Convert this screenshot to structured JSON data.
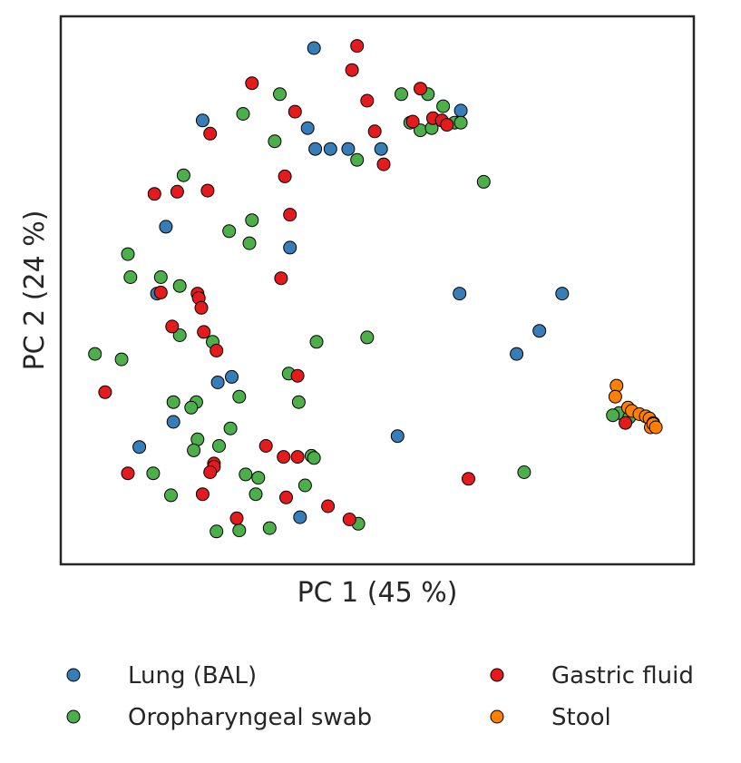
{
  "chart_data": {
    "type": "scatter",
    "title": "",
    "xlabel": "PC 1 (45 %)",
    "ylabel": "PC 2 (24 %)",
    "xlim": [
      0,
      100
    ],
    "ylim": [
      0,
      100
    ],
    "ticks": "none",
    "grid": false,
    "legend_position": "bottom",
    "series": [
      {
        "name": "Lung (BAL)",
        "color": "#377eb8",
        "points": [
          [
            40.0,
            94.2
          ],
          [
            22.4,
            81.0
          ],
          [
            39.0,
            79.6
          ],
          [
            40.2,
            75.8
          ],
          [
            42.6,
            75.8
          ],
          [
            45.4,
            75.8
          ],
          [
            50.6,
            75.8
          ],
          [
            63.2,
            82.8
          ],
          [
            16.6,
            61.6
          ],
          [
            36.2,
            57.8
          ],
          [
            15.2,
            49.4
          ],
          [
            63.0,
            49.4
          ],
          [
            79.2,
            49.4
          ],
          [
            75.6,
            42.6
          ],
          [
            72.0,
            38.4
          ],
          [
            27.0,
            34.2
          ],
          [
            24.8,
            33.2
          ],
          [
            17.8,
            26.0
          ],
          [
            12.4,
            21.4
          ],
          [
            53.2,
            23.4
          ],
          [
            37.8,
            8.6
          ]
        ]
      },
      {
        "name": "Oropharyngeal swab",
        "color": "#4daf4a",
        "points": [
          [
            34.6,
            85.8
          ],
          [
            28.8,
            82.2
          ],
          [
            53.8,
            85.8
          ],
          [
            55.2,
            80.6
          ],
          [
            56.8,
            79.2
          ],
          [
            58.0,
            85.8
          ],
          [
            58.6,
            79.6
          ],
          [
            60.4,
            83.6
          ],
          [
            62.2,
            80.6
          ],
          [
            63.2,
            80.6
          ],
          [
            33.8,
            77.2
          ],
          [
            46.8,
            73.8
          ],
          [
            19.4,
            71.0
          ],
          [
            30.2,
            62.8
          ],
          [
            26.6,
            60.8
          ],
          [
            29.8,
            58.6
          ],
          [
            66.8,
            69.8
          ],
          [
            10.6,
            56.6
          ],
          [
            11.0,
            52.4
          ],
          [
            15.8,
            52.4
          ],
          [
            18.8,
            50.8
          ],
          [
            18.8,
            41.8
          ],
          [
            24.0,
            40.6
          ],
          [
            40.4,
            40.6
          ],
          [
            48.4,
            41.4
          ],
          [
            5.4,
            38.4
          ],
          [
            9.6,
            37.4
          ],
          [
            36.0,
            34.8
          ],
          [
            28.2,
            30.6
          ],
          [
            17.8,
            29.6
          ],
          [
            21.4,
            29.6
          ],
          [
            37.6,
            29.6
          ],
          [
            20.6,
            28.6
          ],
          [
            26.8,
            24.8
          ],
          [
            21.6,
            22.8
          ],
          [
            25.0,
            21.6
          ],
          [
            21.0,
            20.8
          ],
          [
            39.6,
            19.8
          ],
          [
            40.0,
            19.4
          ],
          [
            14.6,
            16.6
          ],
          [
            29.2,
            16.4
          ],
          [
            31.2,
            15.8
          ],
          [
            38.6,
            14.4
          ],
          [
            17.4,
            12.6
          ],
          [
            30.8,
            12.8
          ],
          [
            24.6,
            6.0
          ],
          [
            28.2,
            6.2
          ],
          [
            33.0,
            6.6
          ],
          [
            47.0,
            7.4
          ],
          [
            73.2,
            16.8
          ],
          [
            88.2,
            27.6
          ],
          [
            87.2,
            27.2
          ],
          [
            89.8,
            26.8
          ]
        ]
      },
      {
        "name": "Gastric fluid",
        "color": "#e41a1c",
        "points": [
          [
            46.8,
            94.6
          ],
          [
            46.0,
            90.2
          ],
          [
            30.2,
            87.8
          ],
          [
            48.4,
            84.6
          ],
          [
            56.8,
            86.8
          ],
          [
            37.0,
            82.6
          ],
          [
            55.6,
            80.8
          ],
          [
            58.8,
            81.4
          ],
          [
            60.2,
            81.0
          ],
          [
            61.0,
            80.2
          ],
          [
            23.6,
            78.6
          ],
          [
            49.6,
            79.0
          ],
          [
            51.0,
            73.0
          ],
          [
            35.4,
            70.8
          ],
          [
            14.8,
            67.6
          ],
          [
            18.4,
            68.0
          ],
          [
            23.2,
            68.2
          ],
          [
            36.2,
            63.8
          ],
          [
            34.8,
            52.2
          ],
          [
            15.8,
            49.6
          ],
          [
            21.6,
            49.4
          ],
          [
            21.8,
            48.6
          ],
          [
            22.2,
            46.8
          ],
          [
            17.6,
            43.4
          ],
          [
            22.6,
            42.4
          ],
          [
            24.6,
            39.0
          ],
          [
            37.4,
            34.4
          ],
          [
            7.0,
            31.4
          ],
          [
            32.4,
            21.6
          ],
          [
            35.2,
            19.6
          ],
          [
            37.4,
            19.6
          ],
          [
            24.2,
            18.4
          ],
          [
            24.2,
            17.8
          ],
          [
            23.6,
            16.8
          ],
          [
            10.6,
            16.6
          ],
          [
            64.4,
            15.6
          ],
          [
            22.4,
            12.8
          ],
          [
            35.6,
            12.2
          ],
          [
            42.2,
            10.6
          ],
          [
            27.8,
            8.4
          ],
          [
            45.6,
            8.2
          ],
          [
            89.2,
            25.8
          ]
        ]
      },
      {
        "name": "Stool",
        "color": "#ff7f00",
        "points": [
          [
            87.8,
            32.6
          ],
          [
            87.6,
            30.6
          ],
          [
            89.6,
            28.6
          ],
          [
            90.2,
            28.0
          ],
          [
            91.4,
            27.4
          ],
          [
            92.4,
            27.0
          ],
          [
            93.0,
            26.6
          ],
          [
            93.6,
            25.8
          ],
          [
            93.2,
            25.0
          ],
          [
            93.6,
            25.6
          ],
          [
            94.0,
            25.0
          ]
        ]
      }
    ]
  }
}
